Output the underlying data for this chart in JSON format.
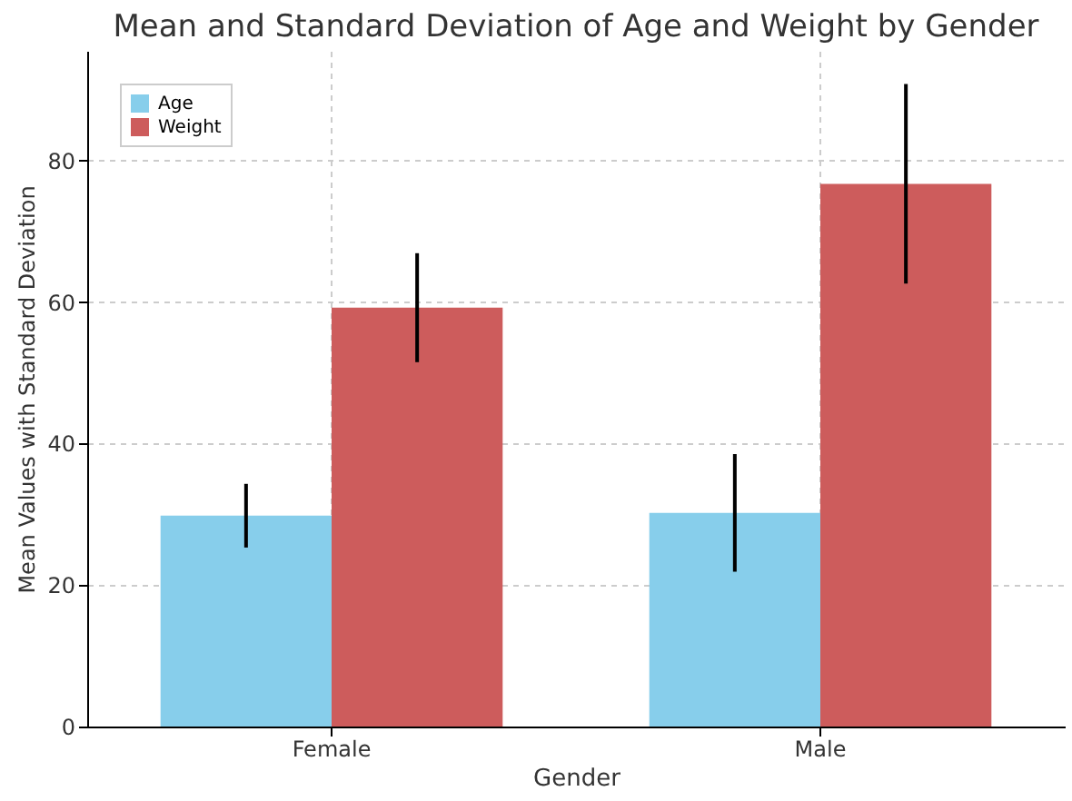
{
  "chart_data": {
    "type": "bar",
    "title": "Mean and Standard Deviation of Age and Weight by Gender",
    "xlabel": "Gender",
    "ylabel": "Mean Values with Standard Deviation",
    "categories": [
      "Female",
      "Male"
    ],
    "series": [
      {
        "name": "Age",
        "color": "#87ceeb",
        "values": [
          29.8,
          30.2
        ],
        "errors": [
          4.5,
          8.3
        ]
      },
      {
        "name": "Weight",
        "color": "#cd5c5c",
        "values": [
          59.2,
          76.7
        ],
        "errors": [
          7.7,
          14.1
        ]
      }
    ],
    "ylim": [
      0,
      95.5
    ],
    "yticks": [
      0,
      20,
      40,
      60,
      80
    ],
    "grid": true,
    "legend": "top left"
  }
}
